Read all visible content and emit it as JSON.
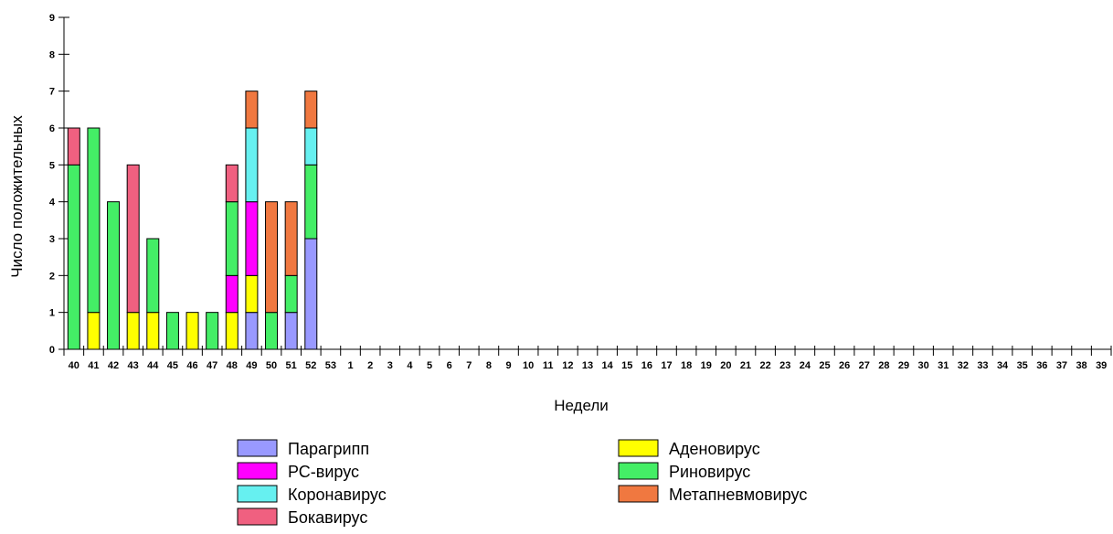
{
  "chart_data": {
    "type": "bar",
    "stacked": true,
    "title": "",
    "xlabel": "Недели",
    "ylabel": "Число положительных",
    "ylim": [
      0,
      9
    ],
    "yticks": [
      "0",
      "1",
      "2",
      "3",
      "4",
      "5",
      "6",
      "7",
      "8",
      "9"
    ],
    "grid": false,
    "legend_position": "bottom",
    "categories": [
      "40",
      "41",
      "42",
      "43",
      "44",
      "45",
      "46",
      "47",
      "48",
      "49",
      "50",
      "51",
      "52",
      "53",
      "1",
      "2",
      "3",
      "4",
      "5",
      "6",
      "7",
      "8",
      "9",
      "10",
      "11",
      "12",
      "13",
      "14",
      "15",
      "16",
      "17",
      "18",
      "19",
      "20",
      "21",
      "22",
      "23",
      "24",
      "25",
      "26",
      "27",
      "28",
      "29",
      "30",
      "31",
      "32",
      "33",
      "34",
      "35",
      "36",
      "37",
      "38",
      "39"
    ],
    "series": [
      {
        "name": "Парагрипп",
        "color": "#9999ff",
        "values": [
          0,
          0,
          0,
          0,
          0,
          0,
          0,
          0,
          0,
          1,
          0,
          1,
          3,
          0,
          0,
          0,
          0,
          0,
          0,
          0,
          0,
          0,
          0,
          0,
          0,
          0,
          0,
          0,
          0,
          0,
          0,
          0,
          0,
          0,
          0,
          0,
          0,
          0,
          0,
          0,
          0,
          0,
          0,
          0,
          0,
          0,
          0,
          0,
          0,
          0,
          0,
          0,
          0
        ]
      },
      {
        "name": "Аденовирус",
        "color": "#ffff00",
        "values": [
          0,
          1,
          0,
          1,
          1,
          0,
          1,
          0,
          1,
          1,
          0,
          0,
          0,
          0,
          0,
          0,
          0,
          0,
          0,
          0,
          0,
          0,
          0,
          0,
          0,
          0,
          0,
          0,
          0,
          0,
          0,
          0,
          0,
          0,
          0,
          0,
          0,
          0,
          0,
          0,
          0,
          0,
          0,
          0,
          0,
          0,
          0,
          0,
          0,
          0,
          0,
          0,
          0
        ]
      },
      {
        "name": "РС-вирус",
        "color": "#ff00ff",
        "values": [
          0,
          0,
          0,
          0,
          0,
          0,
          0,
          0,
          1,
          2,
          0,
          0,
          0,
          0,
          0,
          0,
          0,
          0,
          0,
          0,
          0,
          0,
          0,
          0,
          0,
          0,
          0,
          0,
          0,
          0,
          0,
          0,
          0,
          0,
          0,
          0,
          0,
          0,
          0,
          0,
          0,
          0,
          0,
          0,
          0,
          0,
          0,
          0,
          0,
          0,
          0,
          0,
          0
        ]
      },
      {
        "name": "Риновирус",
        "color": "#44ee66",
        "values": [
          5,
          5,
          4,
          0,
          2,
          1,
          0,
          1,
          2,
          0,
          1,
          1,
          2,
          0,
          0,
          0,
          0,
          0,
          0,
          0,
          0,
          0,
          0,
          0,
          0,
          0,
          0,
          0,
          0,
          0,
          0,
          0,
          0,
          0,
          0,
          0,
          0,
          0,
          0,
          0,
          0,
          0,
          0,
          0,
          0,
          0,
          0,
          0,
          0,
          0,
          0,
          0,
          0
        ]
      },
      {
        "name": "Коронавирус",
        "color": "#66f0f0",
        "values": [
          0,
          0,
          0,
          0,
          0,
          0,
          0,
          0,
          0,
          2,
          0,
          0,
          1,
          0,
          0,
          0,
          0,
          0,
          0,
          0,
          0,
          0,
          0,
          0,
          0,
          0,
          0,
          0,
          0,
          0,
          0,
          0,
          0,
          0,
          0,
          0,
          0,
          0,
          0,
          0,
          0,
          0,
          0,
          0,
          0,
          0,
          0,
          0,
          0,
          0,
          0,
          0,
          0
        ]
      },
      {
        "name": "Метапневмовирус",
        "color": "#f07840",
        "values": [
          0,
          0,
          0,
          0,
          0,
          0,
          0,
          0,
          0,
          1,
          3,
          2,
          1,
          0,
          0,
          0,
          0,
          0,
          0,
          0,
          0,
          0,
          0,
          0,
          0,
          0,
          0,
          0,
          0,
          0,
          0,
          0,
          0,
          0,
          0,
          0,
          0,
          0,
          0,
          0,
          0,
          0,
          0,
          0,
          0,
          0,
          0,
          0,
          0,
          0,
          0,
          0,
          0
        ]
      },
      {
        "name": "Бокавирус",
        "color": "#f06080",
        "values": [
          1,
          0,
          0,
          4,
          0,
          0,
          0,
          0,
          1,
          0,
          0,
          0,
          0,
          0,
          0,
          0,
          0,
          0,
          0,
          0,
          0,
          0,
          0,
          0,
          0,
          0,
          0,
          0,
          0,
          0,
          0,
          0,
          0,
          0,
          0,
          0,
          0,
          0,
          0,
          0,
          0,
          0,
          0,
          0,
          0,
          0,
          0,
          0,
          0,
          0,
          0,
          0,
          0
        ]
      }
    ],
    "legend_order": [
      "Парагрипп",
      "РС-вирус",
      "Коронавирус",
      "Бокавирус",
      "Аденовирус",
      "Риновирус",
      "Метапневмовирус"
    ]
  }
}
